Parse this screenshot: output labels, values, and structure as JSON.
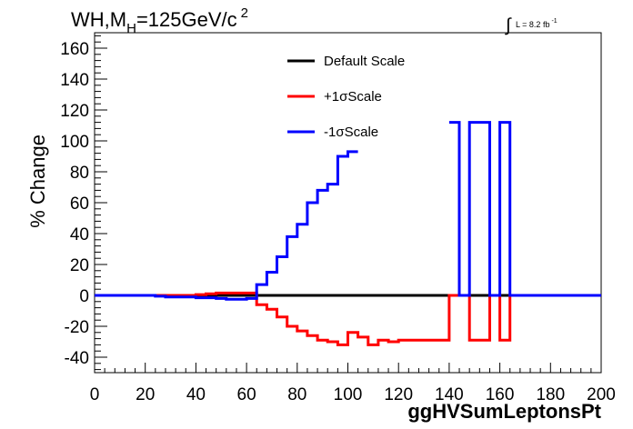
{
  "chart_data": {
    "type": "line",
    "title": {
      "process": "WH,M",
      "subscript": "H",
      "mass": "=125GeV/c",
      "superscript": "2"
    },
    "luminosity": {
      "symbol": "∫",
      "text": "L = 8.2 fb",
      "superscript": "-1"
    },
    "xlabel": "ggHVSumLeptonsPt",
    "ylabel": "% Change",
    "xlim": [
      0,
      200
    ],
    "ylim": [
      -50,
      170
    ],
    "xticks": [
      0,
      20,
      40,
      60,
      80,
      100,
      120,
      140,
      160,
      180,
      200
    ],
    "yticks": [
      -40,
      -20,
      0,
      20,
      40,
      60,
      80,
      100,
      120,
      140,
      160
    ],
    "bin_edges": [
      0,
      4,
      8,
      12,
      16,
      20,
      24,
      28,
      32,
      36,
      40,
      44,
      48,
      52,
      56,
      60,
      64,
      68,
      72,
      76,
      80,
      84,
      88,
      92,
      96,
      100,
      104,
      108,
      112,
      116,
      120,
      124,
      128,
      132,
      136,
      140,
      144,
      148,
      152,
      156,
      160,
      164,
      168,
      172,
      176,
      180,
      184,
      188,
      192,
      196,
      200
    ],
    "legend": {
      "position": "top-center",
      "entries": [
        {
          "label": "Default Scale",
          "color": "#000000"
        },
        {
          "label": "+1σScale",
          "color": "#ff0000"
        },
        {
          "label": "-1σScale",
          "color": "#0000ff"
        }
      ]
    },
    "series": [
      {
        "name": "Default Scale",
        "color": "#000000",
        "values": [
          0,
          0,
          0,
          0,
          0,
          0,
          0,
          0,
          0,
          0,
          0,
          0,
          0,
          0,
          0,
          0,
          0,
          0,
          0,
          0,
          0,
          0,
          0,
          0,
          0,
          0,
          0,
          0,
          0,
          0,
          0,
          0,
          0,
          0,
          0,
          0,
          0,
          0,
          0,
          0,
          0,
          0,
          0,
          0,
          0,
          0,
          0,
          0,
          0,
          0
        ]
      },
      {
        "name": "+1σScale",
        "color": "#ff0000",
        "values": [
          0,
          0,
          0,
          0,
          0,
          0,
          0,
          0,
          0,
          0,
          0.5,
          1,
          1.5,
          1.5,
          1.5,
          1.5,
          -6,
          -9,
          -14,
          -20,
          -23,
          -26,
          -29,
          -30,
          -32,
          -24,
          -27,
          -32,
          -29,
          -30,
          -29,
          -29,
          -29,
          -29,
          -29,
          0,
          0,
          -29,
          -29,
          0,
          -29,
          0,
          0,
          0,
          0,
          0,
          0,
          0,
          0,
          0
        ]
      },
      {
        "name": "-1σScale",
        "color": "#0000ff",
        "values": [
          0,
          0,
          0,
          0,
          0,
          0,
          -0.5,
          -1,
          -1,
          -1,
          -1.5,
          -1.5,
          -2,
          -2.5,
          -2.5,
          -2,
          7,
          15,
          25,
          38,
          46,
          60,
          68,
          72,
          90,
          93,
          null,
          null,
          null,
          null,
          null,
          null,
          null,
          null,
          null,
          112,
          0,
          112,
          112,
          0,
          112,
          0,
          0,
          0,
          0,
          0,
          0,
          0,
          0,
          0
        ]
      }
    ]
  }
}
